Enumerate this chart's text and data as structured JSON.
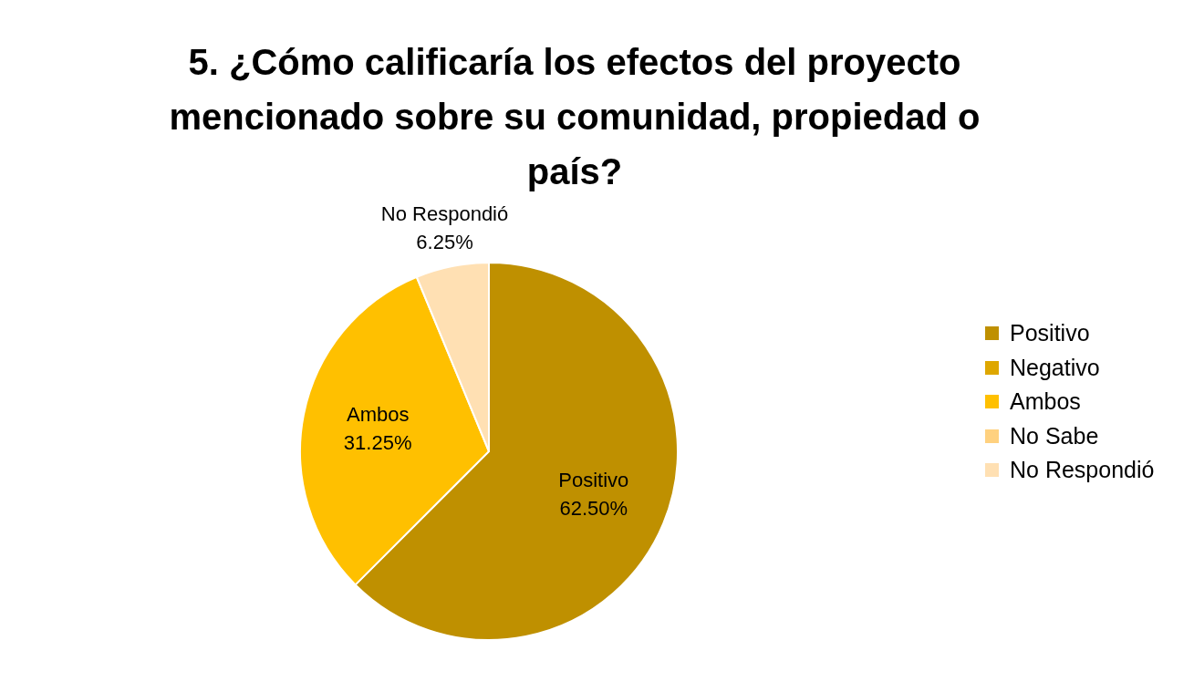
{
  "chart_data": {
    "type": "pie",
    "title": "5. ¿Cómo calificaría los efectos del proyecto mencionado sobre su comunidad, propiedad o país?",
    "categories": [
      "Positivo",
      "Negativo",
      "Ambos",
      "No Sabe",
      "No Respondió"
    ],
    "values": [
      62.5,
      0,
      31.25,
      0,
      6.25
    ],
    "colors": [
      "#bf9000",
      "#dea700",
      "#ffc000",
      "#ffd17f",
      "#ffe0b3"
    ],
    "value_labels": [
      "62.50%",
      null,
      "31.25%",
      null,
      "6.25%"
    ],
    "legend": "right"
  }
}
